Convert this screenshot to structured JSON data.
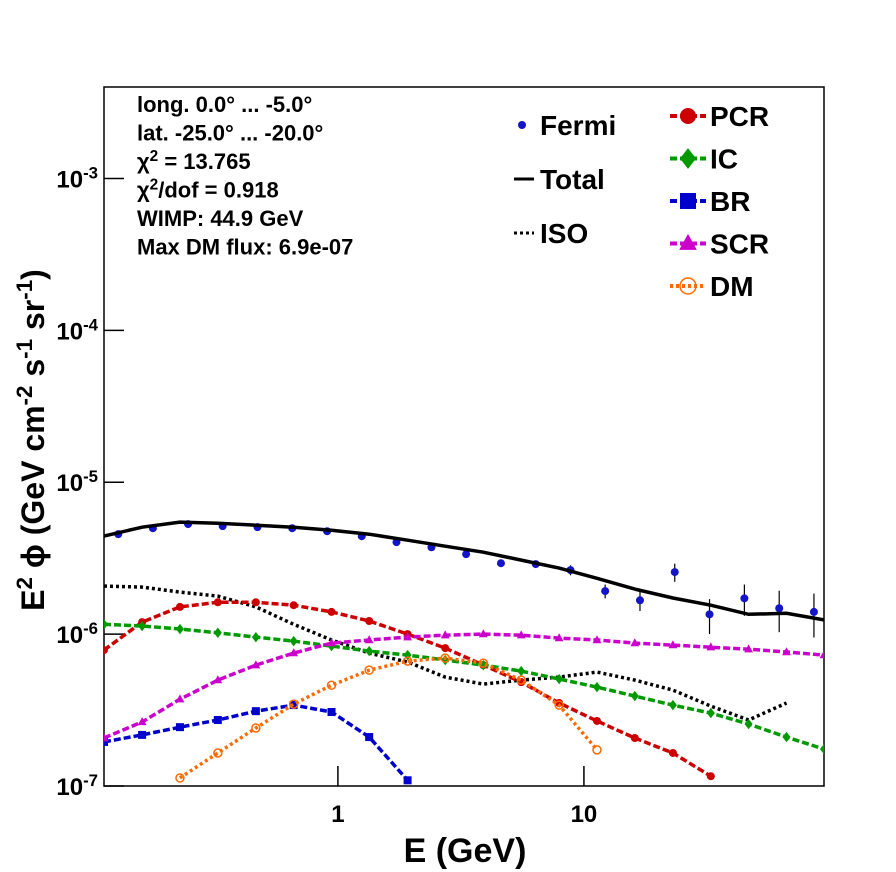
{
  "chart_data": {
    "type": "line",
    "x_label": "E (GeV)",
    "y_label": [
      "E",
      "2",
      " ϕ (GeV cm",
      "-2",
      " s",
      "-1",
      " sr",
      "-1",
      ")"
    ],
    "log_x": true,
    "log_y": true,
    "legend": "top-right",
    "xlim": [
      0.112,
      94.6
    ],
    "ylim": [
      1e-07,
      0.004
    ],
    "xticks": [
      1,
      10
    ],
    "yticks": [
      {
        "value": 1e-07,
        "label": "10",
        "exponent": "-7"
      },
      {
        "value": 1e-06,
        "label": "10",
        "exponent": "-6"
      },
      {
        "value": 1e-05,
        "label": "10",
        "exponent": "-5"
      },
      {
        "value": 0.0001,
        "label": "10",
        "exponent": "-4"
      },
      {
        "value": 0.001,
        "label": "10",
        "exponent": "-3"
      }
    ],
    "annotations": [
      [
        "long. 0.0° ... -5.0°"
      ],
      [
        "lat. -25.0° ... -20.0°"
      ],
      [
        "χ",
        "2",
        " = 13.765"
      ],
      [
        "χ",
        "2",
        "/dof = 0.918"
      ],
      [
        "WIMP: 44.9 GeV"
      ],
      [
        "Max DM flux: 6.9e-07"
      ]
    ],
    "series": [
      {
        "name": "Fermi",
        "type": "scatter",
        "color": "#1414c8",
        "x": [
          0.128,
          0.177,
          0.246,
          0.34,
          0.471,
          0.652,
          0.904,
          1.25,
          1.73,
          2.4,
          3.32,
          4.6,
          6.37,
          8.82,
          12.2,
          16.9,
          23.4,
          32.4,
          44.9,
          62.2,
          86.1
        ],
        "values": [
          4.55e-06,
          4.98e-06,
          5.3e-06,
          5.14e-06,
          5.06e-06,
          4.98e-06,
          4.76e-06,
          4.41e-06,
          4.03e-06,
          3.73e-06,
          3.36e-06,
          2.93e-06,
          2.89e-06,
          2.64e-06,
          1.92e-06,
          1.67e-06,
          2.56e-06,
          1.35e-06,
          1.72e-06,
          1.48e-06,
          1.4e-06
        ],
        "errors": [
          1e-07,
          1e-07,
          1e-07,
          1e-07,
          1e-07,
          1e-07,
          1e-07,
          1e-07,
          1e-07,
          1e-07,
          1e-07,
          1e-07,
          1.2e-07,
          2e-07,
          2e-07,
          2.5e-07,
          3.5e-07,
          3.5e-07,
          4e-07,
          4.5e-07,
          4.5e-07
        ]
      },
      {
        "name": "Total",
        "type": "line",
        "color": "#000000",
        "style": "solid",
        "x": [
          0.112,
          0.16,
          0.228,
          0.325,
          0.464,
          0.661,
          0.942,
          1.34,
          1.92,
          2.73,
          3.9,
          5.56,
          7.93,
          11.3,
          16.1,
          23.0,
          32.8,
          46.7,
          66.6,
          94.6
        ],
        "values": [
          4.42e-06,
          5.06e-06,
          5.46e-06,
          5.37e-06,
          5.21e-06,
          5.06e-06,
          4.83e-06,
          4.55e-06,
          4.15e-06,
          3.79e-06,
          3.46e-06,
          3.07e-06,
          2.72e-06,
          2.33e-06,
          1.98e-06,
          1.73e-06,
          1.55e-06,
          1.35e-06,
          1.37e-06,
          1.24e-06
        ]
      },
      {
        "name": "ISO",
        "type": "line",
        "color": "#000000",
        "style": "dotted",
        "x": [
          0.112,
          0.16,
          0.228,
          0.325,
          0.464,
          0.661,
          0.942,
          1.34,
          1.92,
          2.73,
          3.9,
          5.56,
          7.93,
          11.3,
          16.1,
          23.0,
          32.8,
          46.7,
          66.6,
          94.6
        ],
        "values": [
          2.07e-06,
          2.04e-06,
          1.89e-06,
          1.78e-06,
          1.51e-06,
          1.16e-06,
          9.14e-07,
          7.5e-07,
          6.55e-07,
          5.21e-07,
          4.69e-07,
          4.98e-07,
          5.21e-07,
          5.62e-07,
          4.98e-07,
          4.28e-07,
          3.36e-07,
          2.72e-07,
          3.52e-07,
          null
        ]
      },
      {
        "name": "PCR",
        "type": "line",
        "color": "#cc0000",
        "style": "dashed",
        "marker": "circle",
        "x": [
          0.112,
          0.16,
          0.228,
          0.325,
          0.464,
          0.661,
          0.942,
          1.34,
          1.92,
          2.73,
          3.9,
          5.56,
          7.93,
          11.3,
          16.1,
          23.0,
          32.8,
          46.7,
          66.6,
          94.6
        ],
        "values": [
          7.85e-07,
          1.2e-06,
          1.51e-06,
          1.62e-06,
          1.62e-06,
          1.55e-06,
          1.4e-06,
          1.22e-06,
          1e-06,
          8.09e-07,
          6.25e-07,
          4.83e-07,
          3.52e-07,
          2.68e-07,
          2.07e-07,
          1.65e-07,
          1.16e-07,
          null,
          null,
          null
        ]
      },
      {
        "name": "IC",
        "type": "line",
        "color": "#009a00",
        "style": "dashed",
        "marker": "diamond",
        "x": [
          0.112,
          0.16,
          0.228,
          0.325,
          0.464,
          0.661,
          0.942,
          1.34,
          1.92,
          2.73,
          3.9,
          5.56,
          7.93,
          11.3,
          16.1,
          23.0,
          32.8,
          46.7,
          66.6,
          94.6
        ],
        "values": [
          1.16e-06,
          1.13e-06,
          1.08e-06,
          1.02e-06,
          9.55e-07,
          8.99e-07,
          8.34e-07,
          7.73e-07,
          7.28e-07,
          6.75e-07,
          6.25e-07,
          5.71e-07,
          5.06e-07,
          4.48e-07,
          3.91e-07,
          3.41e-07,
          3.02e-07,
          2.56e-07,
          2.1e-07,
          1.75e-07
        ]
      },
      {
        "name": "BR",
        "type": "line",
        "color": "#0000cc",
        "style": "dashed",
        "marker": "square",
        "x": [
          0.112,
          0.16,
          0.228,
          0.325,
          0.464,
          0.661,
          0.942,
          1.34,
          1.92,
          2.73,
          3.9,
          5.56,
          7.93,
          11.3,
          16.1,
          23.0,
          32.8,
          46.7,
          66.6,
          94.6
        ],
        "values": [
          1.95e-07,
          2.17e-07,
          2.44e-07,
          2.72e-07,
          3.11e-07,
          3.41e-07,
          3.07e-07,
          2.1e-07,
          1.09e-07,
          null,
          null,
          null,
          null,
          null,
          null,
          null,
          null,
          null,
          null,
          null
        ]
      },
      {
        "name": "SCR",
        "type": "line",
        "color": "#cc00cc",
        "style": "dashed",
        "marker": "triangle",
        "x": [
          0.112,
          0.16,
          0.228,
          0.325,
          0.464,
          0.661,
          0.942,
          1.34,
          1.92,
          2.73,
          3.9,
          5.56,
          7.93,
          11.3,
          16.1,
          23.0,
          32.8,
          46.7,
          66.6,
          94.6
        ],
        "values": [
          2.07e-07,
          2.64e-07,
          3.73e-07,
          4.98e-07,
          6.25e-07,
          7.5e-07,
          8.73e-07,
          9.14e-07,
          9.55e-07,
          9.84e-07,
          1e-06,
          9.84e-07,
          9.42e-07,
          9.14e-07,
          8.73e-07,
          8.47e-07,
          8.2e-07,
          7.96e-07,
          7.62e-07,
          7.28e-07
        ]
      },
      {
        "name": "DM",
        "type": "line",
        "color": "#ff6a00",
        "style": "dotted",
        "marker": "open-circle",
        "x": [
          0.112,
          0.16,
          0.228,
          0.325,
          0.464,
          0.661,
          0.942,
          1.34,
          1.92,
          2.73,
          3.9,
          5.56,
          7.93,
          11.3,
          16.1,
          23.0,
          32.8,
          46.7,
          66.6,
          94.6
        ],
        "values": [
          null,
          null,
          1.13e-07,
          1.65e-07,
          2.41e-07,
          3.46e-07,
          4.61e-07,
          5.79e-07,
          6.64e-07,
          6.95e-07,
          6.44e-07,
          4.98e-07,
          3.41e-07,
          1.73e-07,
          null,
          null,
          null,
          null,
          null,
          null
        ]
      }
    ]
  }
}
